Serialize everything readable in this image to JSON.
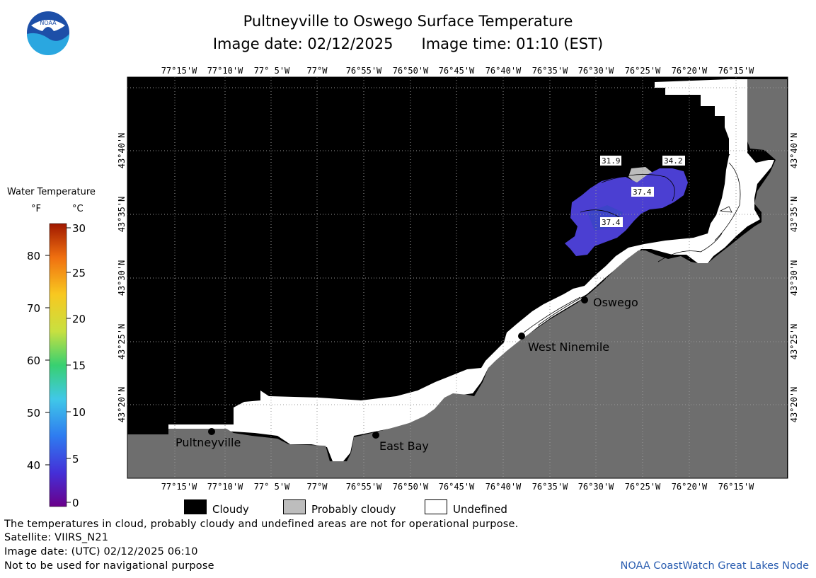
{
  "header": {
    "title": "Pultneyville to Oswego Surface Temperature",
    "image_date": "Image date: 02/12/2025",
    "image_time": "Image time: 01:10 (EST)"
  },
  "logo": {
    "text": "NOAA",
    "icon": "noaa-logo-icon"
  },
  "map": {
    "top_longitude_labels": [
      "77°15'W",
      "77°10'W",
      "77° 5'W",
      "77°W",
      "76°55'W",
      "76°50'W",
      "76°45'W",
      "76°40'W",
      "76°35'W",
      "76°30'W",
      "76°25'W",
      "76°20'W",
      "76°15'W"
    ],
    "bottom_longitude_labels": [
      "77°15'W",
      "77°10'W",
      "77° 5'W",
      "77°W",
      "76°55'W",
      "76°50'W",
      "76°45'W",
      "76°40'W",
      "76°35'W",
      "76°30'W",
      "76°25'W",
      "76°20'W",
      "76°15'W"
    ],
    "latitude_labels": [
      "43°40'N",
      "43°35'N",
      "43°30'N",
      "43°25'N",
      "43°20'N"
    ],
    "places": [
      {
        "name": "Pultneyville"
      },
      {
        "name": "East Bay"
      },
      {
        "name": "West Ninemile"
      },
      {
        "name": "Oswego"
      }
    ],
    "temperature_labels": [
      "31.9",
      "34.2",
      "37.4",
      "37.4"
    ],
    "colors": {
      "cloudy": "#000000",
      "land": "#6e6e6e",
      "undefined": "#ffffff",
      "probably_cloudy": "#bdbdbd",
      "water_cold": "#4a3fd0"
    }
  },
  "colorbar": {
    "title": "Water Temperature",
    "unit_f": "°F",
    "unit_c": "°C",
    "f_ticks": [
      "80",
      "70",
      "60",
      "50",
      "40"
    ],
    "c_ticks": [
      "30",
      "25",
      "20",
      "15",
      "10",
      "5",
      "0"
    ]
  },
  "legend": {
    "cloudy": "Cloudy",
    "probably_cloudy": "Probably cloudy",
    "undefined": "Undefined"
  },
  "footer": {
    "note": "The temperatures in cloud, probably cloudy and undefined areas are not for operational purpose.",
    "satellite": "Satellite: VIIRS_N21",
    "utc_date": "Image date: (UTC) 02/12/2025  06:10",
    "nav_warning": "Not to be used for navigational purpose",
    "credit": "NOAA CoastWatch Great Lakes Node"
  }
}
